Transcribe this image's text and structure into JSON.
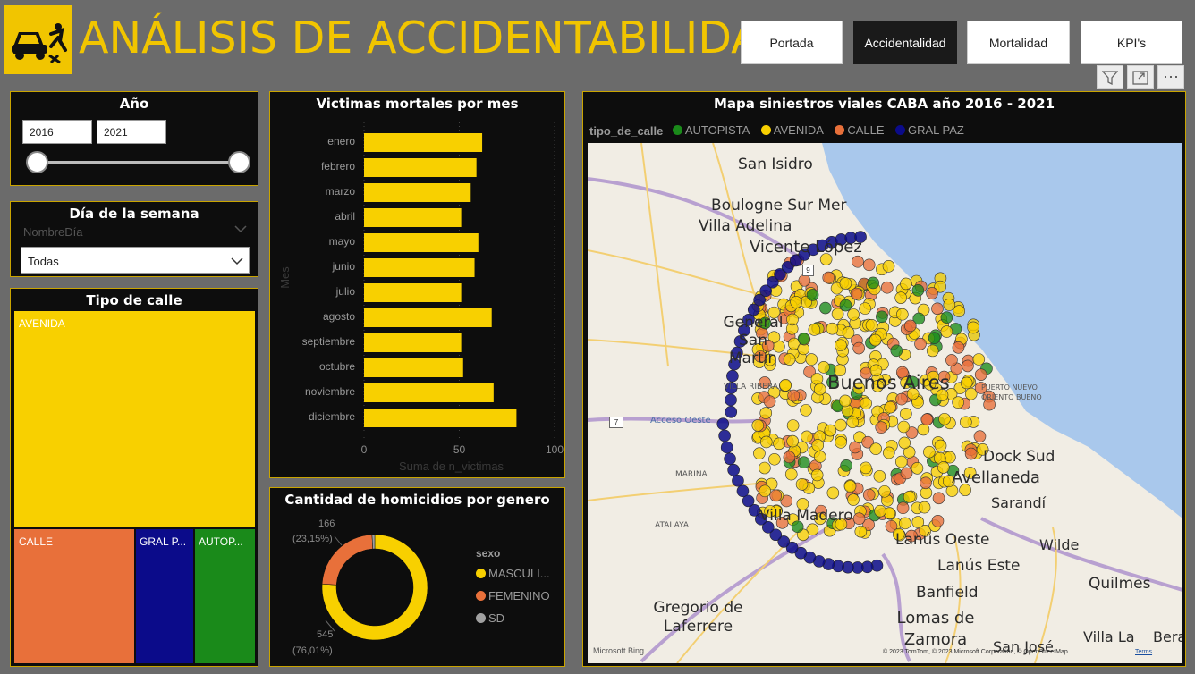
{
  "header": {
    "title": "ANÁLISIS DE ACCIDENTABILIDAD",
    "logo_icon": "car-accident-icon",
    "accent": "#f1c500",
    "nav": [
      {
        "label": "Portada",
        "active": false
      },
      {
        "label": "Accidentalidad",
        "active": true
      },
      {
        "label": "Mortalidad",
        "active": false
      },
      {
        "label": "KPI's",
        "active": false
      }
    ]
  },
  "toolbar": {
    "filter_icon": "filter-icon",
    "focus_icon": "focus-mode-icon",
    "more_label": "⋯"
  },
  "year_slicer": {
    "title": "Año",
    "from": "2016",
    "to": "2021"
  },
  "day_slicer": {
    "title": "Día de la semana",
    "field": "NombreDía",
    "selected": "Todas"
  },
  "street_type": {
    "title": "Tipo de calle",
    "items": [
      {
        "label": "AVENIDA",
        "color": "#f8d000"
      },
      {
        "label": "CALLE",
        "color": "#e8703a"
      },
      {
        "label": "GRAL P...",
        "color": "#0b0b8a"
      },
      {
        "label": "AUTOP...",
        "color": "#1a8a1a"
      }
    ]
  },
  "monthly_deaths": {
    "title": "Victimas mortales por mes",
    "ylabel": "Mes",
    "xlabel": "Suma de n_victimas"
  },
  "chart_data": [
    {
      "type": "bar",
      "orientation": "horizontal",
      "title": "Victimas mortales por mes",
      "categories": [
        "enero",
        "febrero",
        "marzo",
        "abril",
        "mayo",
        "junio",
        "julio",
        "agosto",
        "septiembre",
        "octubre",
        "noviembre",
        "diciembre"
      ],
      "values": [
        62,
        59,
        56,
        51,
        60,
        58,
        51,
        67,
        51,
        52,
        68,
        80
      ],
      "xlabel": "Suma de n_victimas",
      "ylabel": "Mes",
      "xlim": [
        0,
        100
      ],
      "xticks": [
        "0",
        "50",
        "100"
      ],
      "color": "#f8d000"
    },
    {
      "type": "pie",
      "donut": true,
      "title": "Cantidad de homicidios por genero",
      "legend_title": "sexo",
      "categories": [
        "MASCULI...",
        "FEMENINO",
        "SD"
      ],
      "values": [
        545,
        166,
        6
      ],
      "colors": [
        "#f8d000",
        "#e8703a",
        "#a0a0a0"
      ],
      "data_labels": [
        {
          "count": "545",
          "pct": "(76,01%)"
        },
        {
          "count": "166",
          "pct": "(23,15%)"
        }
      ]
    }
  ],
  "gender": {
    "title": "Cantidad de homicidios por genero",
    "legend_title": "sexo",
    "legend": [
      {
        "label": "MASCULI...",
        "color": "#f8d000"
      },
      {
        "label": "FEMENINO",
        "color": "#e8703a"
      },
      {
        "label": "SD",
        "color": "#a0a0a0"
      }
    ],
    "label_big": {
      "count": "545",
      "pct": "(76,01%)"
    },
    "label_small": {
      "count": "166",
      "pct": "(23,15%)"
    }
  },
  "map": {
    "title": "Mapa siniestros viales CABA año 2016 - 2021",
    "legend_title": "tipo_de_calle",
    "legend": [
      {
        "label": "AUTOPISTA",
        "color": "#1a8a1a"
      },
      {
        "label": "AVENIDA",
        "color": "#f8d000"
      },
      {
        "label": "CALLE",
        "color": "#e8703a"
      },
      {
        "label": "GRAL PAZ",
        "color": "#0b0b8a"
      }
    ],
    "places": [
      "San Isidro",
      "Boulogne Sur Mer",
      "Villa Adelina",
      "Vicente López",
      "General San Martín",
      "Buenos Aires",
      "Dock Sud",
      "Avellaneda",
      "Sarandí",
      "Villa Madero",
      "Lanús Oeste",
      "Wilde",
      "Lanús Este",
      "Quilmes",
      "Banfield",
      "Gregorio de Laferrere",
      "Lomas de Zamora",
      "San José",
      "Villa La",
      "Bera"
    ],
    "small_places": [
      "VILLA RIBERA",
      "Acceso Oeste",
      "MARINA",
      "ATALAYA",
      "PUERTO NUEVO",
      "ORIENTO BUENO"
    ],
    "road_shields": [
      "9",
      "7"
    ],
    "attribution": "© 2023 TomTom, © 2023 Microsoft Corporation, © OpenStreetMap",
    "terms": "Terms",
    "bing": "Microsoft Bing"
  }
}
